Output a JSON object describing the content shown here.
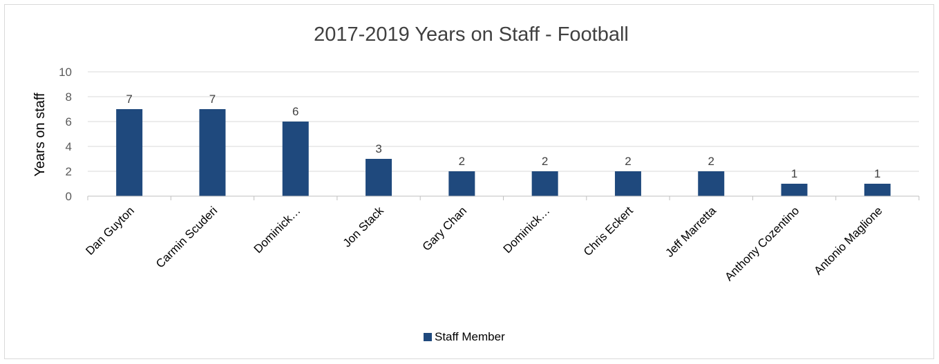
{
  "chart_data": {
    "type": "bar",
    "title": "2017-2019 Years on Staff - Football",
    "ylabel": "Years on staff",
    "xlabel": "",
    "ylim": [
      0,
      10
    ],
    "yticks": [
      0,
      2,
      4,
      6,
      8,
      10
    ],
    "grid": true,
    "legend_position": "bottom",
    "categories": [
      "Dan Guyton",
      "Carmin Scuderi",
      "Dominick…",
      "Jon Stack",
      "Gary Chan",
      "Dominick…",
      "Chris Eckert",
      "Jeff Marretta",
      "Anthony Cozentino",
      "Antonio Maglione"
    ],
    "series": [
      {
        "name": "Staff Member",
        "color": "#1f497d",
        "values": [
          7,
          7,
          6,
          3,
          2,
          2,
          2,
          2,
          1,
          1
        ]
      }
    ],
    "data_labels": true
  }
}
